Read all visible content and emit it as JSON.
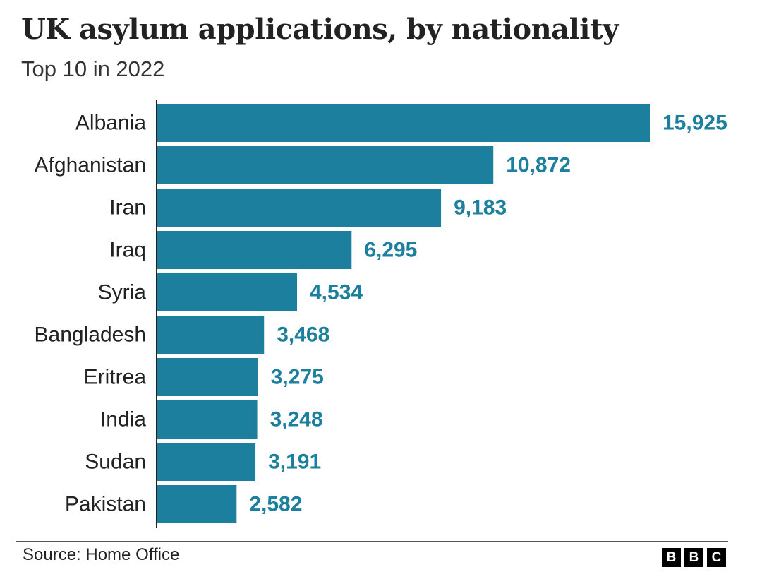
{
  "title": "UK asylum applications, by nationality",
  "subtitle": "Top 10 in 2022",
  "source": "Source: Home Office",
  "logo": [
    "B",
    "B",
    "C"
  ],
  "colors": {
    "bar": "#1b7f9d",
    "value_label": "#1b7f9d",
    "category_label": "#222222",
    "axis": "#222222"
  },
  "chart_data": {
    "type": "bar",
    "orientation": "horizontal",
    "title": "UK asylum applications, by nationality",
    "subtitle": "Top 10 in 2022",
    "categories": [
      "Albania",
      "Afghanistan",
      "Iran",
      "Iraq",
      "Syria",
      "Bangladesh",
      "Eritrea",
      "India",
      "Sudan",
      "Pakistan"
    ],
    "values": [
      15925,
      10872,
      9183,
      6295,
      4534,
      3468,
      3275,
      3248,
      3191,
      2582
    ],
    "value_labels": [
      "15,925",
      "10,872",
      "9,183",
      "6,295",
      "4,534",
      "3,468",
      "3,275",
      "3,248",
      "3,191",
      "2,582"
    ],
    "xlim": [
      0,
      15925
    ],
    "grid": false,
    "legend": "none"
  }
}
